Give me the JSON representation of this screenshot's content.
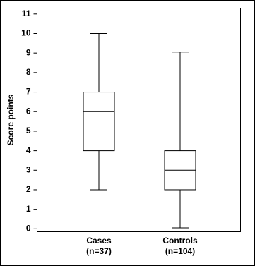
{
  "chart_data": {
    "type": "box",
    "y_label": "Score points",
    "categories": [
      "Cases",
      "Controls"
    ],
    "category_notes": [
      "(n=37)",
      "(n=104)"
    ],
    "boxes": [
      {
        "min": 2,
        "q1": 4,
        "median": 6,
        "q3": 7,
        "max": 10
      },
      {
        "min": 0.05,
        "q1": 2,
        "median": 3,
        "q3": 4,
        "max": 9.05
      }
    ],
    "color": "#000000",
    "ylim": [
      -0.15,
      11.3
    ],
    "yticks": [
      0,
      1,
      2,
      3,
      4,
      5,
      6,
      7,
      8,
      9,
      10,
      11
    ]
  }
}
